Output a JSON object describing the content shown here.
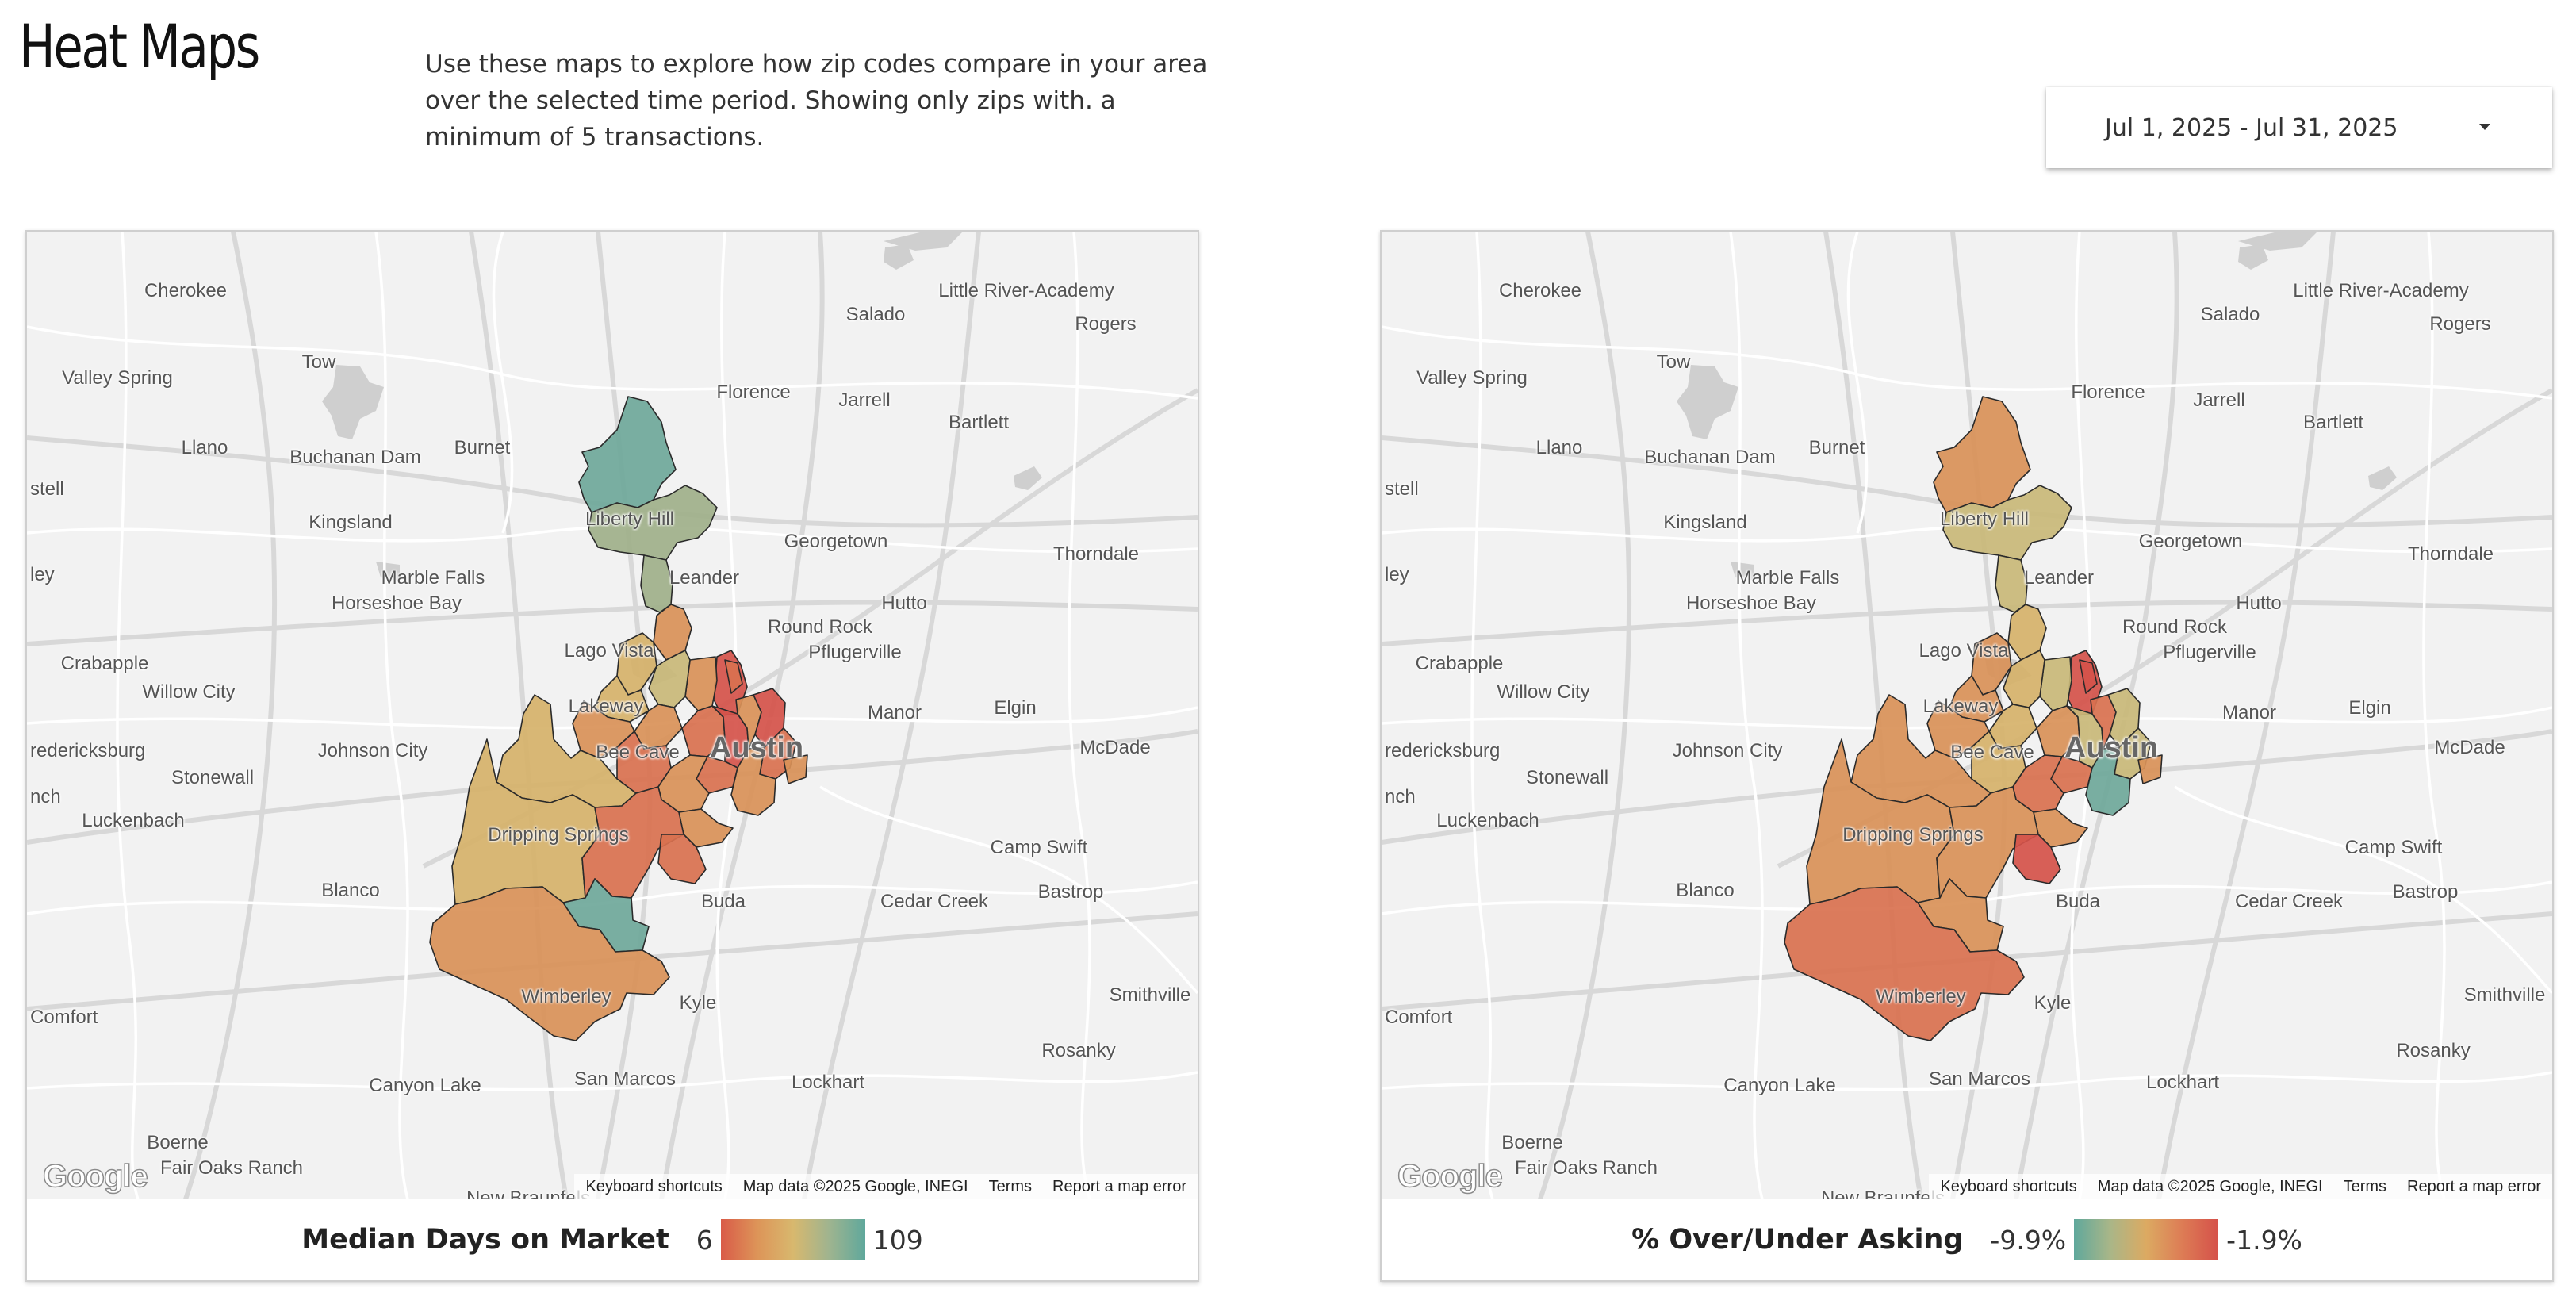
{
  "page": {
    "title": "Heat Maps",
    "intro_lines": [
      "Use these maps to explore how zip codes compare in your area",
      "over the selected time period.  Showing only zips with. a",
      "minimum of 5 transactions."
    ]
  },
  "date_range": {
    "value": "Jul 1, 2025 - Jul 31, 2025",
    "icon": "caret-down-icon"
  },
  "map_labels": [
    "Cherokee",
    "Little River-Academy",
    "Salado",
    "Rogers",
    "Tow",
    "Valley Spring",
    "Florence",
    "Jarrell",
    "Bartlett",
    "Llano",
    "Buchanan Dam",
    "Burnet",
    "stell",
    "Kingsland",
    "Liberty Hill",
    "Georgetown",
    "Thorndale",
    "ley",
    "Marble Falls",
    "Horseshoe Bay",
    "Leander",
    "Hutto",
    "Round Rock",
    "Crabapple",
    "Lago Vista",
    "Pflugerville",
    "Willow City",
    "Lakeway",
    "Manor",
    "Elgin",
    "redericksburg",
    "Johnson City",
    "Bee Cave",
    "Austin",
    "McDade",
    "Stonewall",
    "nch",
    "Luckenbach",
    "Dripping Springs",
    "Camp Swift",
    "Blanco",
    "Bastrop",
    "Buda",
    "Cedar Creek",
    "Comfort",
    "Wimberley",
    "Kyle",
    "Smithville",
    "Rosanky",
    "Canyon Lake",
    "San Marcos",
    "Lockhart",
    "Boerne",
    "Fair Oaks Ranch",
    "New Braunfels"
  ],
  "attribution": {
    "logo": "Google",
    "keyboard": "Keyboard shortcuts",
    "map_data": "Map data ©2025 Google, INEGI",
    "terms": "Terms",
    "report": "Report a map error"
  },
  "maps": [
    {
      "legend_title": "Median Days on Market",
      "min": "6",
      "max": "109",
      "gradient": [
        "#d95b48",
        "#dd9458",
        "#d8b86e",
        "#9fb48f",
        "#5fa89c"
      ]
    },
    {
      "legend_title": "% Over/Under Asking",
      "min": "-9.9%",
      "max": "-1.9%",
      "gradient": [
        "#5fa89c",
        "#a9b688",
        "#dcaa62",
        "#dd7c55",
        "#d5514a"
      ]
    }
  ],
  "colors": {
    "teal": "#6fa89a",
    "sage": "#9fb08a",
    "khaki": "#c9b878",
    "tan": "#d6b26a",
    "orange": "#d99158",
    "coral": "#d9714f",
    "red": "#d5524a"
  }
}
